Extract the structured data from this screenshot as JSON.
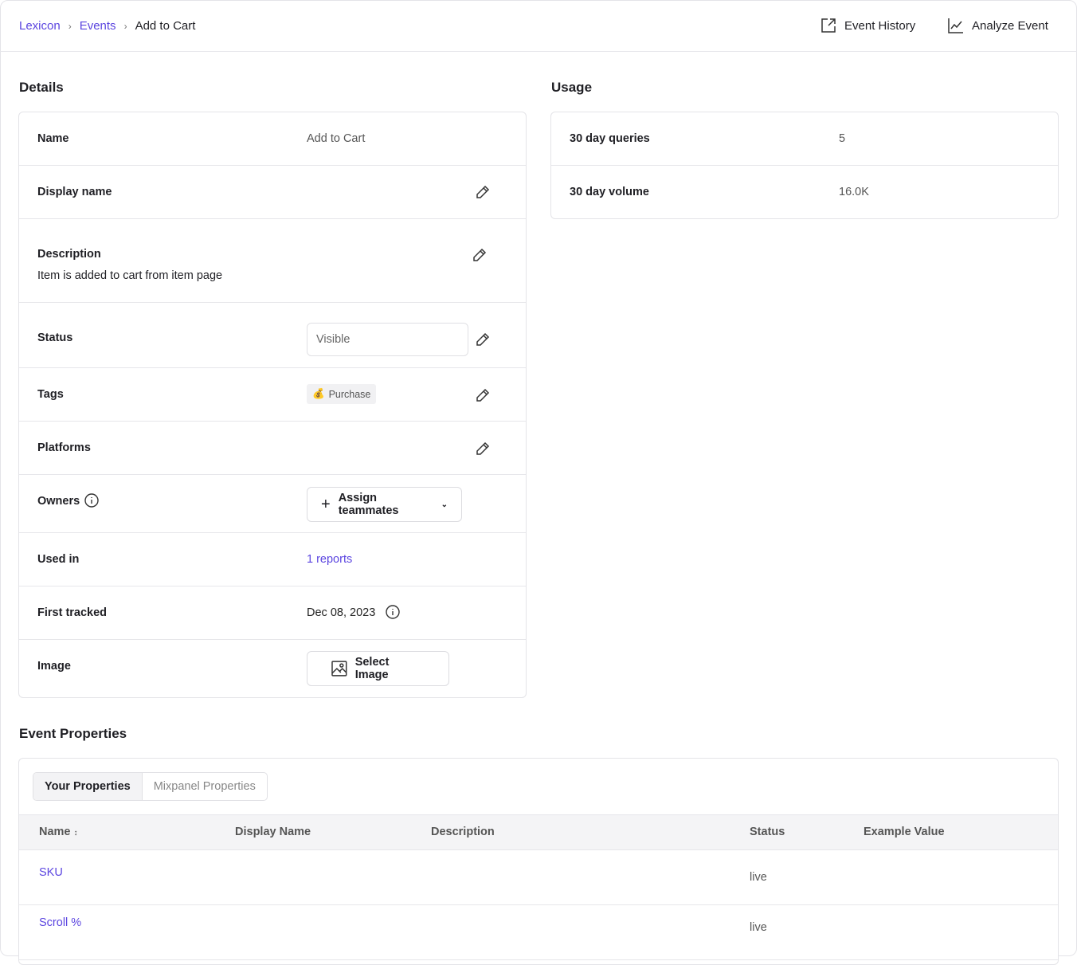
{
  "header": {
    "breadcrumb": [
      "Lexicon",
      "Events",
      "Add to Cart"
    ],
    "event_history": "Event History",
    "analyze_event": "Analyze Event"
  },
  "details": {
    "title": "Details",
    "name_label": "Name",
    "name_value": "Add to Cart",
    "display_name_label": "Display name",
    "description_label": "Description",
    "description_value": "Item is added to cart from item page",
    "status_label": "Status",
    "status_value": "Visible",
    "tags_label": "Tags",
    "tag": "Purchase",
    "tag_icon": "money-bag-icon",
    "platforms_label": "Platforms",
    "owners_label": "Owners",
    "assign_label": "Assign teammates",
    "used_in_label": "Used in",
    "used_in_value": "1 reports",
    "first_tracked_label": "First tracked",
    "first_tracked_value": "Dec 08, 2023",
    "image_label": "Image",
    "select_image": "Select Image"
  },
  "usage": {
    "title": "Usage",
    "queries_label": "30 day queries",
    "queries_value": "5",
    "volume_label": "30 day volume",
    "volume_value": "16.0K"
  },
  "properties": {
    "title": "Event Properties",
    "tabs": [
      "Your Properties",
      "Mixpanel Properties"
    ],
    "columns": [
      "Name",
      "Display Name",
      "Description",
      "Status",
      "Example Value"
    ],
    "rows": [
      {
        "name": "SKU",
        "status": "live"
      },
      {
        "name": "Scroll %",
        "status": "live"
      }
    ]
  },
  "colors": {
    "accent": "#5b45e0",
    "border": "#e4e4e8"
  }
}
